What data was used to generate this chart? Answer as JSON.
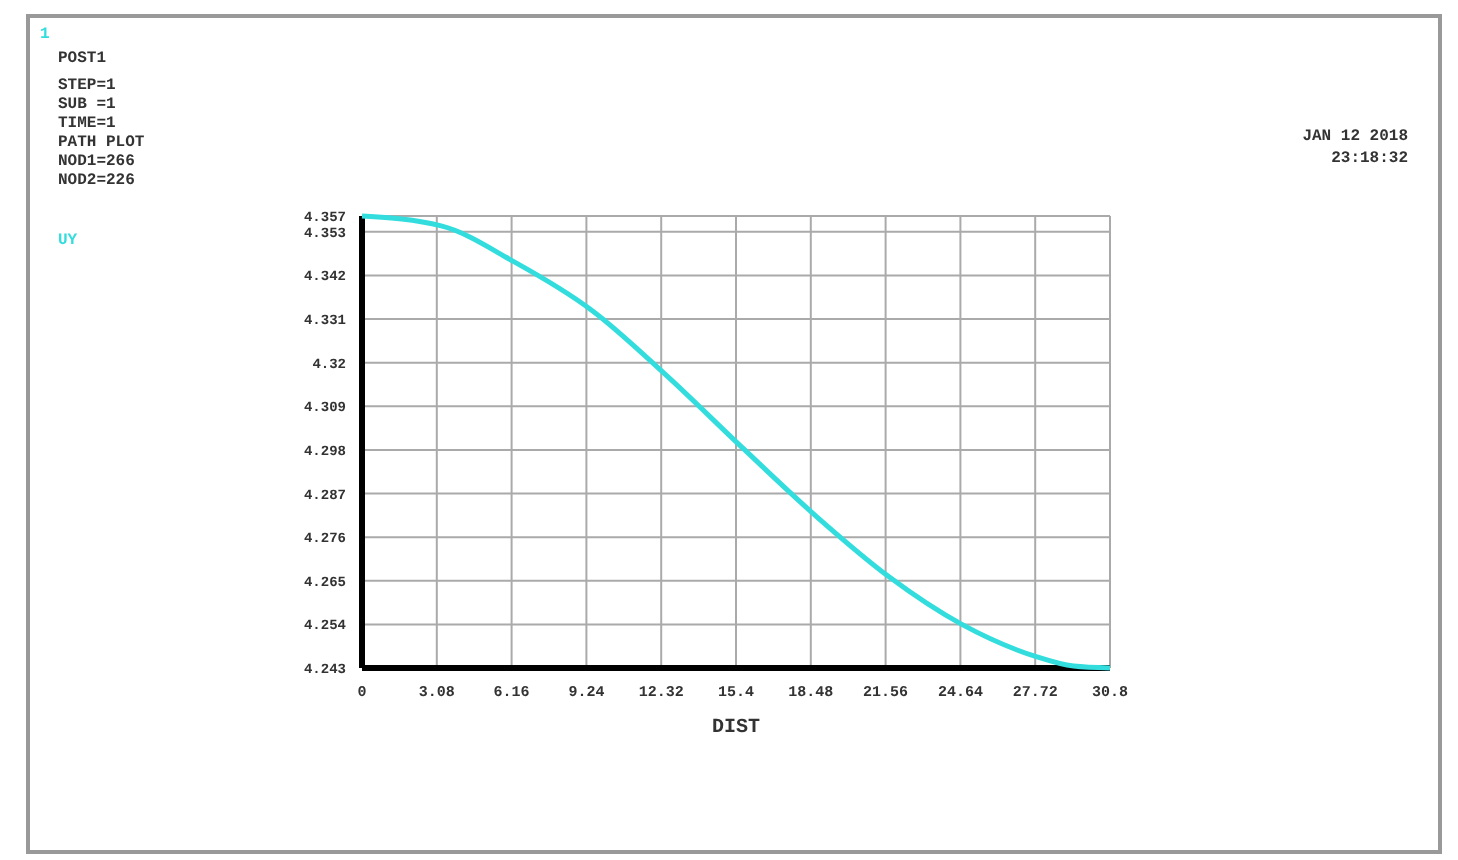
{
  "chart_data": {
    "type": "line",
    "xlabel": "DIST",
    "annotations": [
      "1",
      "POST1",
      "STEP=1",
      "SUB =1",
      "TIME=1",
      "PATH PLOT",
      "NOD1=266",
      "NOD2=226",
      "JAN 12 2018",
      "23:18:32"
    ],
    "x": [
      0,
      3.26,
      6.25,
      9.51,
      12.5,
      15.76,
      18.75,
      21.7,
      24.7,
      27.7,
      29.3,
      30.8
    ],
    "series": [
      {
        "name": "UY",
        "color": "#33dddd",
        "values": [
          4.357,
          4.3545,
          4.3455,
          4.333,
          4.317,
          4.298,
          4.281,
          4.266,
          4.254,
          4.246,
          4.2435,
          4.243
        ]
      }
    ],
    "xlim": [
      0,
      30.8
    ],
    "xticks": [
      0,
      3.08,
      6.16,
      9.24,
      12.32,
      15.4,
      18.48,
      21.56,
      24.64,
      27.72,
      30.8
    ],
    "ylim": [
      4.243,
      4.357
    ],
    "yticks": [
      4.243,
      4.254,
      4.265,
      4.276,
      4.287,
      4.298,
      4.309,
      4.32,
      4.331,
      4.342,
      4.353,
      4.357
    ],
    "grid": true,
    "legend": "top left",
    "marker": "none",
    "line_style": "solid"
  }
}
